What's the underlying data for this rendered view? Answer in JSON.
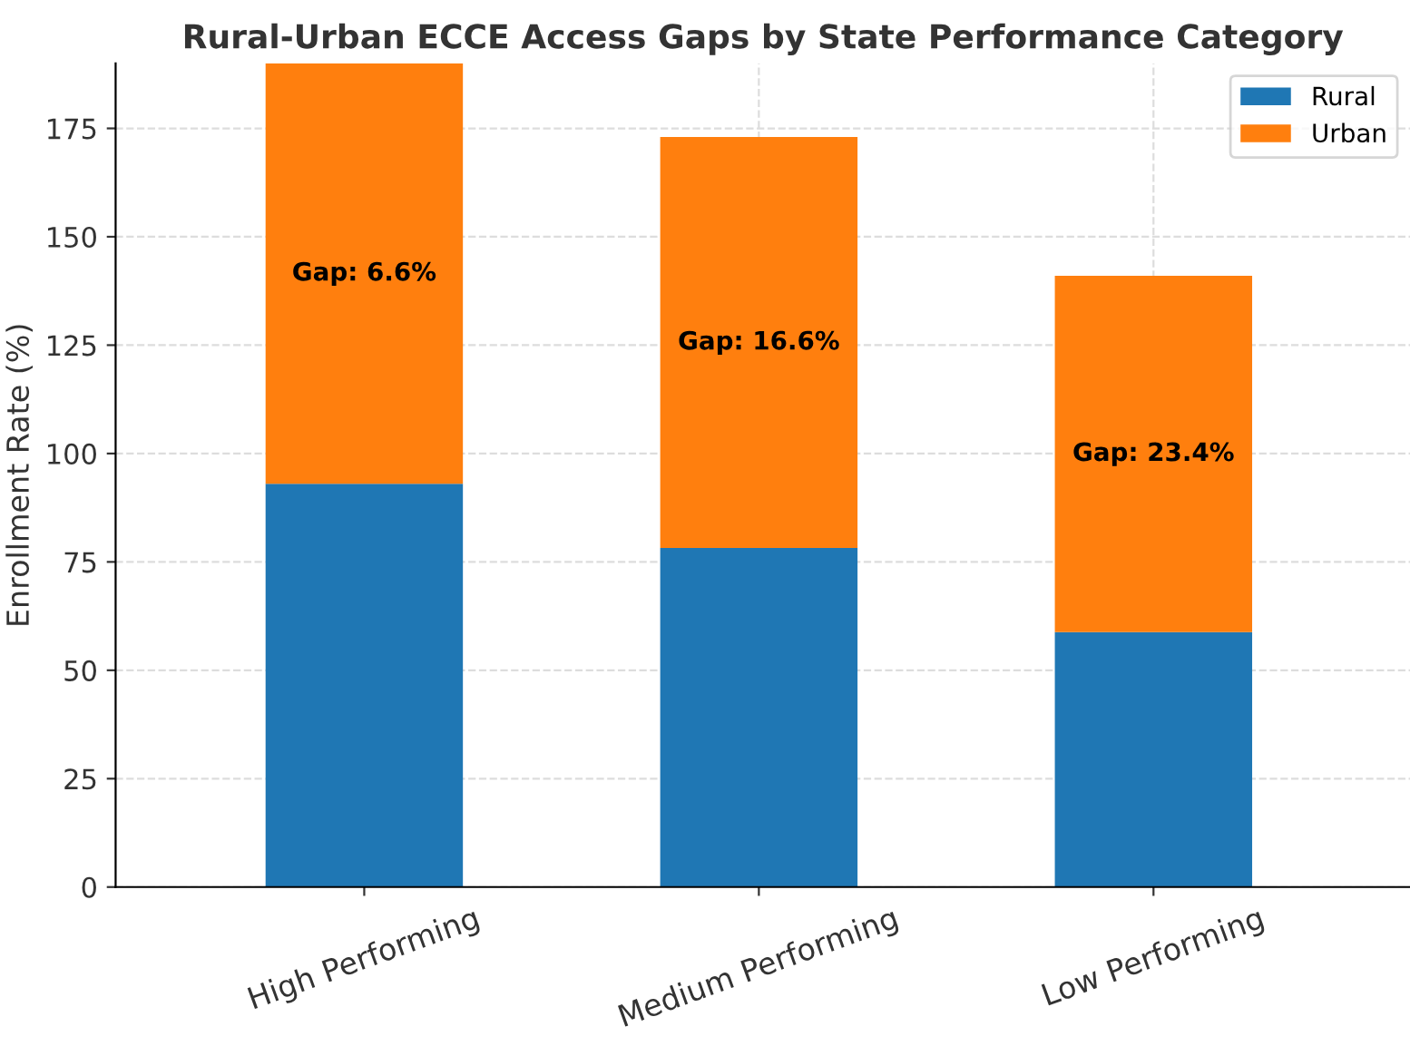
{
  "chart_data": {
    "type": "bar",
    "title": "Rural-Urban ECCE Access Gaps by State Performance Category",
    "ylabel": "Enrollment Rate (%)",
    "categories": [
      "High Performing",
      "Medium Performing",
      "Low Performing"
    ],
    "stacked": true,
    "series": [
      {
        "name": "Rural",
        "color": "#1f77b4",
        "values": [
          93.0,
          78.2,
          58.8
        ]
      },
      {
        "name": "Urban",
        "color": "#ff7f0e",
        "values": [
          97.0,
          94.8,
          82.2
        ]
      }
    ],
    "ylim": [
      0,
      190
    ],
    "yticks": [
      0,
      25,
      50,
      75,
      100,
      125,
      150,
      175
    ],
    "grid": true,
    "legend": "top right",
    "annotations": [
      "Gap: 6.6%",
      "Gap: 16.6%",
      "Gap: 23.4%"
    ]
  }
}
